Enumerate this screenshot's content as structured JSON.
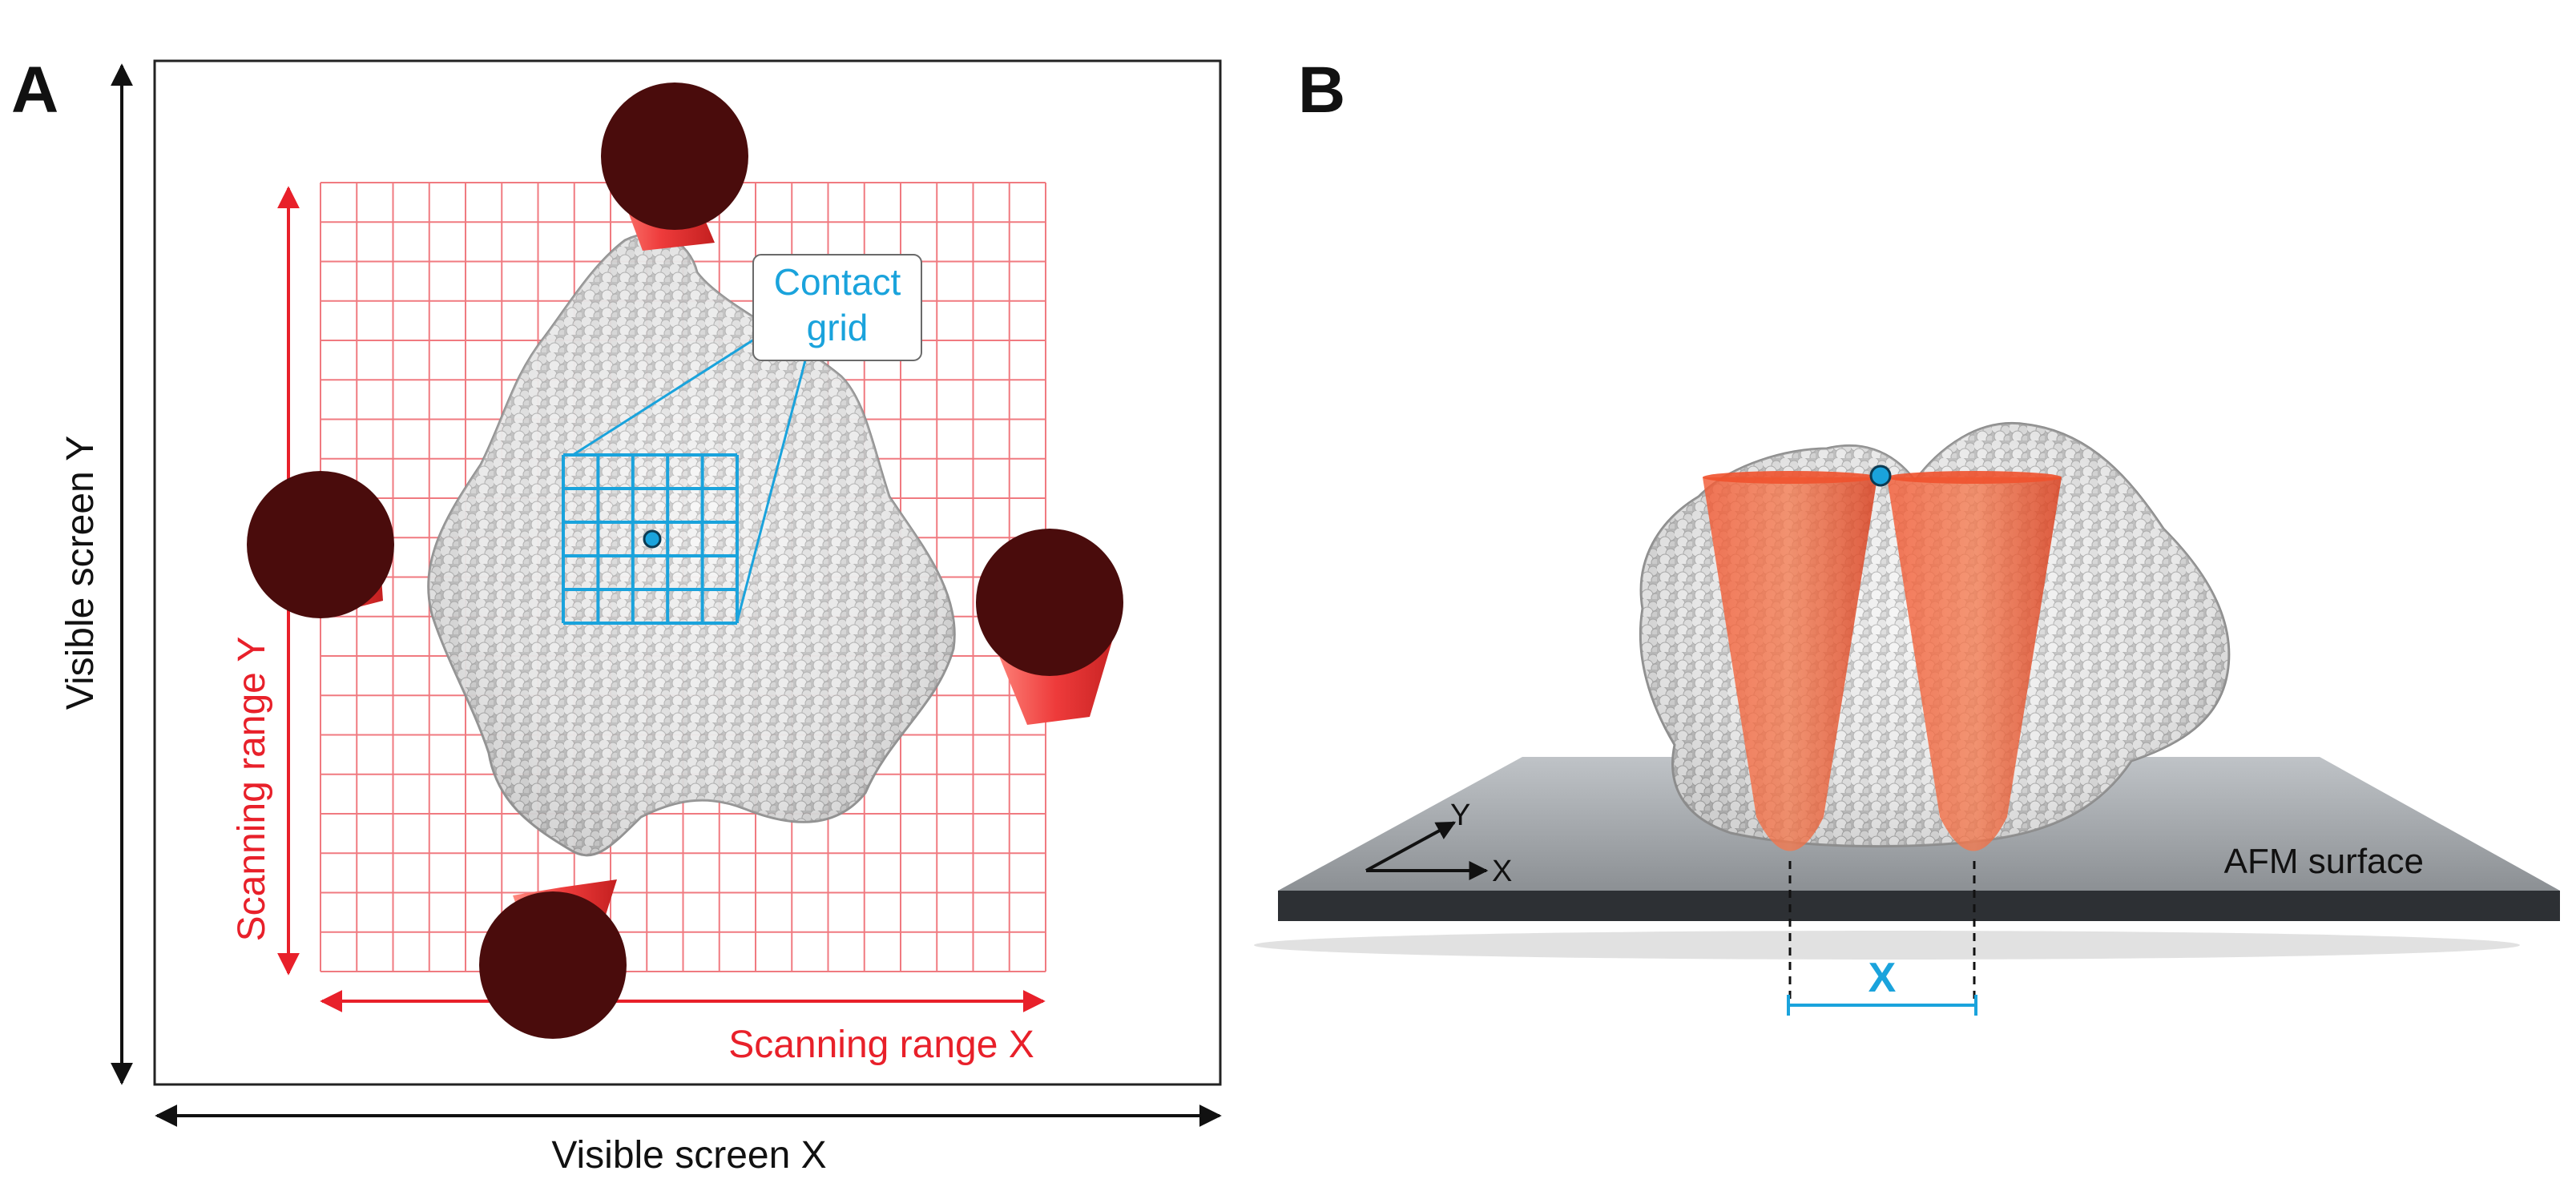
{
  "panel_a": {
    "letter": "A",
    "visible_screen_x": "Visible screen X",
    "visible_screen_y": "Visible screen Y",
    "scanning_range_x": "Scanning range X",
    "scanning_range_y": "Scanning range Y",
    "callout_line1": "Contact",
    "callout_line2": "grid",
    "scanning_grid_cells": 20,
    "contact_grid_cells": 5
  },
  "panel_b": {
    "letter": "B",
    "surface_label": "AFM surface",
    "axis_y": "Y",
    "axis_x": "X",
    "distance_label": "X"
  },
  "colors": {
    "scan_red": "#e8202a",
    "grid_red": "#f07a80",
    "contact_blue": "#1aa3dc",
    "tip_orange": "#f0522e",
    "tip_dark": "#4a0c0c",
    "surface_gray": "#9ea2a6"
  }
}
